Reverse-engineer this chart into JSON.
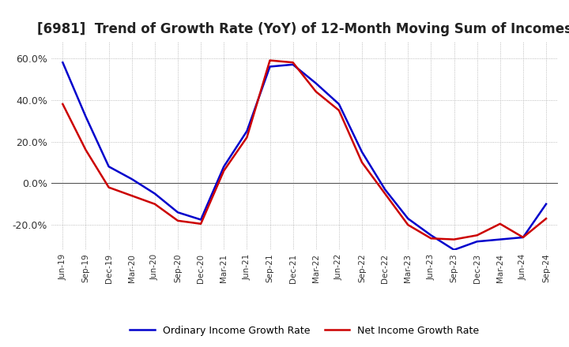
{
  "title": "[6981]  Trend of Growth Rate (YoY) of 12-Month Moving Sum of Incomes",
  "title_fontsize": 12,
  "ylim": [
    -32,
    68
  ],
  "yticks": [
    -20.0,
    0.0,
    20.0,
    40.0,
    60.0
  ],
  "background_color": "#ffffff",
  "grid_color": "#aaaaaa",
  "x_labels": [
    "Jun-19",
    "Sep-19",
    "Dec-19",
    "Mar-20",
    "Jun-20",
    "Sep-20",
    "Dec-20",
    "Mar-21",
    "Jun-21",
    "Sep-21",
    "Dec-21",
    "Mar-22",
    "Jun-22",
    "Sep-22",
    "Dec-22",
    "Mar-23",
    "Jun-23",
    "Sep-23",
    "Dec-23",
    "Mar-24",
    "Jun-24",
    "Sep-24"
  ],
  "ordinary_income": [
    58.0,
    32.0,
    8.0,
    2.0,
    -5.0,
    -14.0,
    -17.5,
    8.0,
    25.0,
    56.0,
    57.0,
    48.0,
    38.0,
    15.0,
    -3.0,
    -17.0,
    -25.0,
    -32.0,
    -28.0,
    -27.0,
    -26.0,
    -10.0
  ],
  "net_income": [
    38.0,
    16.0,
    -2.0,
    -6.0,
    -10.0,
    -18.0,
    -19.5,
    6.0,
    22.0,
    59.0,
    58.0,
    44.0,
    35.0,
    10.0,
    -5.0,
    -20.0,
    -26.5,
    -27.0,
    -25.0,
    -19.5,
    -26.0,
    -17.0
  ],
  "ordinary_color": "#0000cc",
  "net_color": "#cc0000",
  "line_width": 1.8,
  "legend_ordinary": "Ordinary Income Growth Rate",
  "legend_net": "Net Income Growth Rate"
}
